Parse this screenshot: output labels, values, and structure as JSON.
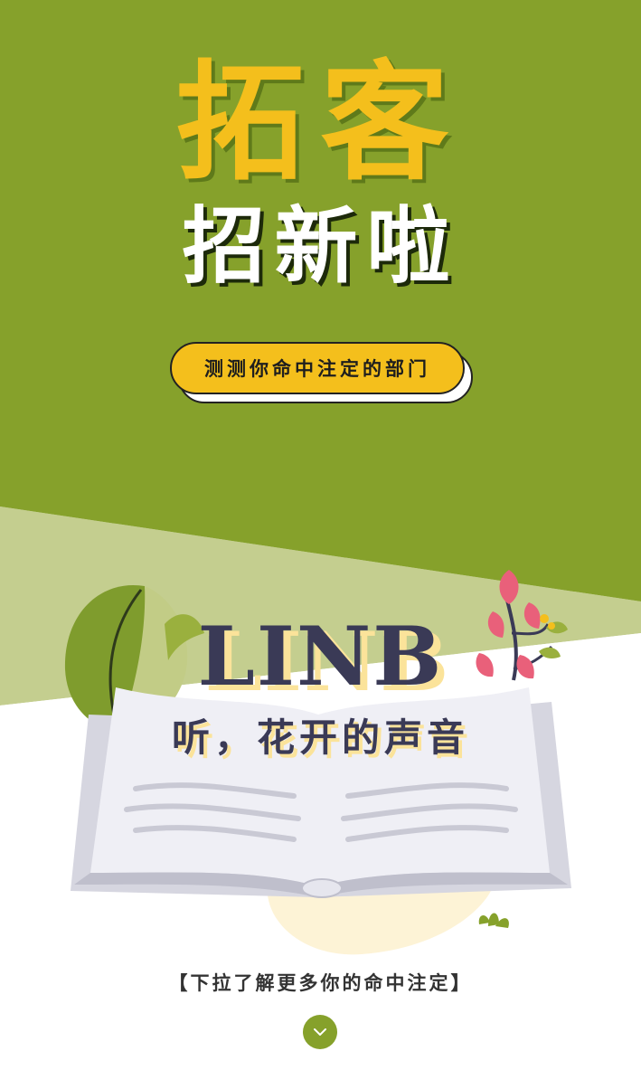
{
  "hero": {
    "title": "拓客",
    "subtitle": "招新啦"
  },
  "test_button": {
    "label": "测测你命中注定的部门"
  },
  "brand": {
    "name": "LINB",
    "slogan": "听，花开的声音"
  },
  "footer": {
    "hint": "【下拉了解更多你的命中注定】",
    "scroll_icon": "chevron-down-icon"
  },
  "colors": {
    "primary_green": "#86a12b",
    "light_green": "#c4ce8f",
    "accent_yellow": "#f4bf1c",
    "text_dark": "#3a3a56",
    "pink": "#e9607a"
  }
}
